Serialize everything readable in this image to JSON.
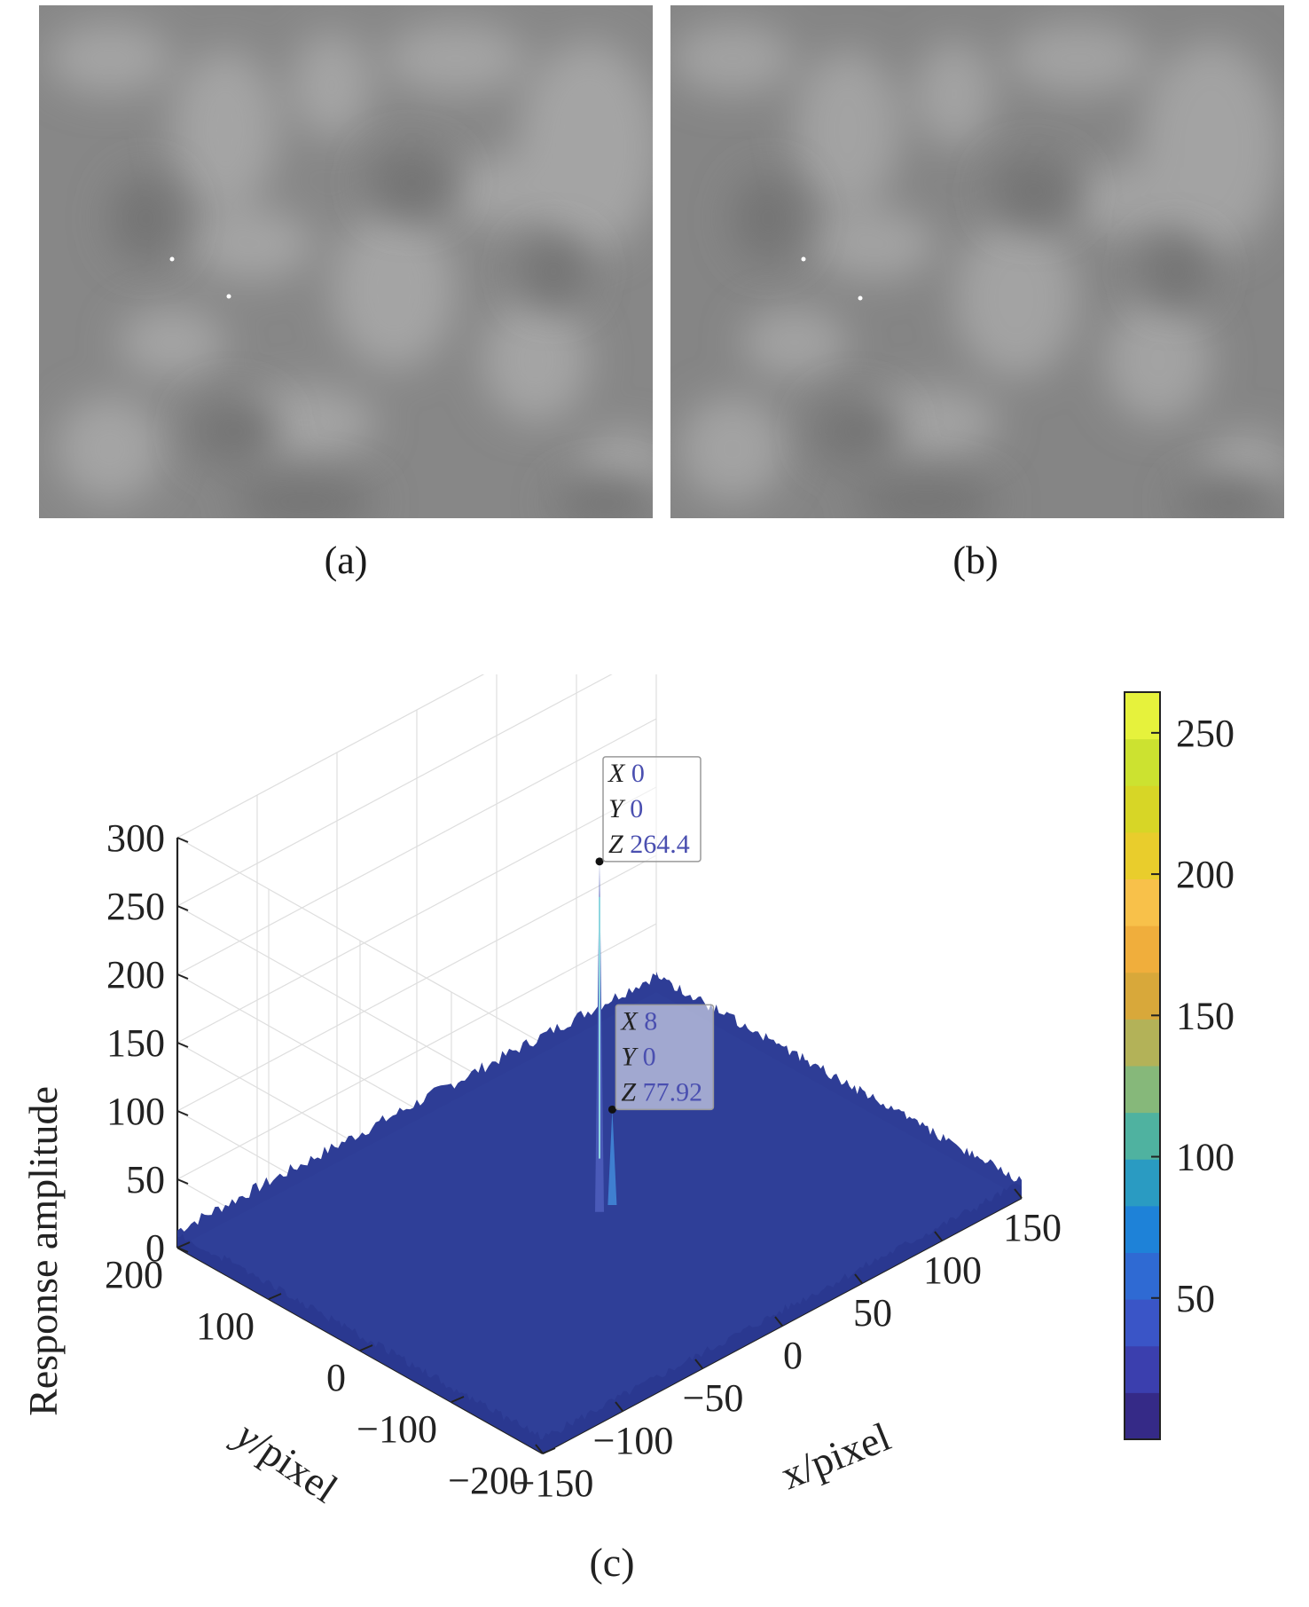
{
  "panels": {
    "a": {
      "caption": "(a)"
    },
    "b": {
      "caption": "(b)"
    },
    "c": {
      "caption": "(c)"
    }
  },
  "chart_data": {
    "type": "surface",
    "xlabel": "x/pixel",
    "ylabel": "y/pixel",
    "zlabel": "Response amplitude",
    "xlim": [
      -150,
      150
    ],
    "ylim": [
      -200,
      200
    ],
    "zlim": [
      0,
      300
    ],
    "x_ticks": [
      "−150",
      "−100",
      "−50",
      "0",
      "50",
      "100",
      "150"
    ],
    "y_ticks": [
      "200",
      "100",
      "0",
      "−100",
      "−200"
    ],
    "z_ticks": [
      "0",
      "50",
      "100",
      "150",
      "200",
      "250",
      "300"
    ],
    "grid": true,
    "colorbar": {
      "range": [
        0,
        264.4
      ],
      "ticks": [
        "250",
        "200",
        "150",
        "100",
        "50"
      ],
      "colors": [
        "#352a87",
        "#3b3fae",
        "#3a55c7",
        "#2f6ad3",
        "#1e82d8",
        "#2a9bc2",
        "#4fb2a0",
        "#86b87a",
        "#b3b258",
        "#d8a83a",
        "#f0ae3c",
        "#f8c14a",
        "#e9cd2c",
        "#d7d626",
        "#cce230",
        "#e6f23c"
      ]
    },
    "peaks": [
      {
        "x": 0,
        "y": 0,
        "z": 264.4,
        "labels": {
          "x": "0",
          "y": "0",
          "z": "264.4"
        }
      },
      {
        "x": 8,
        "y": 0,
        "z": 77.92,
        "labels": {
          "x": "8",
          "y": "0",
          "z": "77.92"
        }
      }
    ]
  }
}
